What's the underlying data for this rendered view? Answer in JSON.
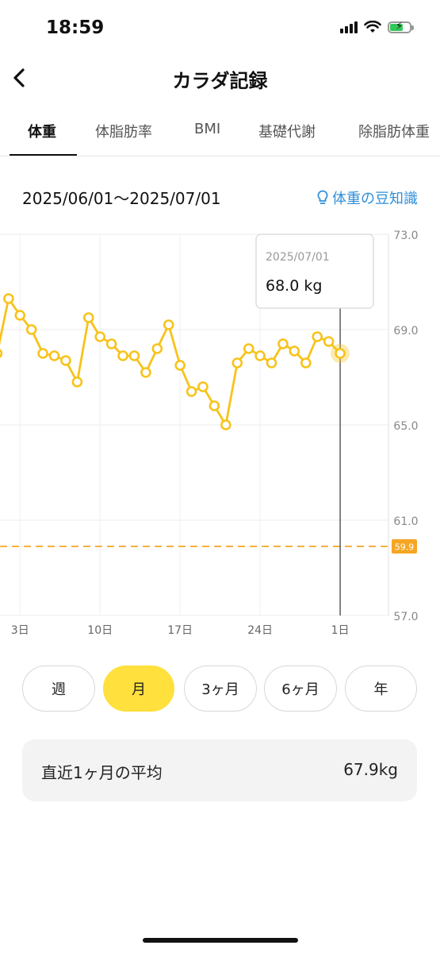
{
  "status_bar": {
    "time": "18:59"
  },
  "header": {
    "title": "カラダ記録"
  },
  "tabs": [
    {
      "label": "体重",
      "active": true
    },
    {
      "label": "体脂肪率"
    },
    {
      "label": "BMI"
    },
    {
      "label": "基礎代謝"
    },
    {
      "label": "除脂肪体重"
    }
  ],
  "range_text": "2025/06/01〜2025/07/01",
  "tips_link": "体重の豆知識",
  "chart_data": {
    "type": "line",
    "x": [
      "2025-06-01",
      "2025-06-02",
      "2025-06-03",
      "2025-06-04",
      "2025-06-05",
      "2025-06-06",
      "2025-06-07",
      "2025-06-08",
      "2025-06-09",
      "2025-06-10",
      "2025-06-11",
      "2025-06-12",
      "2025-06-13",
      "2025-06-14",
      "2025-06-15",
      "2025-06-16",
      "2025-06-17",
      "2025-06-18",
      "2025-06-19",
      "2025-06-20",
      "2025-06-21",
      "2025-06-22",
      "2025-06-23",
      "2025-06-24",
      "2025-06-25",
      "2025-06-26",
      "2025-06-27",
      "2025-06-28",
      "2025-06-29",
      "2025-06-30",
      "2025-07-01"
    ],
    "series": [
      {
        "values": [
          68.0,
          70.3,
          69.6,
          69.0,
          68.0,
          67.9,
          67.7,
          66.8,
          69.5,
          68.7,
          68.4,
          67.9,
          67.9,
          67.2,
          68.2,
          69.2,
          67.5,
          66.4,
          66.6,
          65.8,
          65.0,
          67.6,
          68.2,
          67.9,
          67.6,
          68.4,
          68.1,
          67.6,
          68.7,
          68.5,
          68.0
        ]
      }
    ],
    "x_ticks": [
      {
        "x": "2025-06-03",
        "label": "3日"
      },
      {
        "x": "2025-06-10",
        "label": "10日"
      },
      {
        "x": "2025-06-17",
        "label": "17日"
      },
      {
        "x": "2025-06-24",
        "label": "24日"
      },
      {
        "x": "2025-07-01",
        "label": "1日"
      }
    ],
    "x_range": [
      "2025-05-31",
      "2025-07-08"
    ],
    "y_ticks": [
      "73.0",
      "69.0",
      "65.0",
      "61.0",
      "57.0"
    ],
    "ylim": [
      57,
      73
    ],
    "target_line": {
      "value": 59.9,
      "label": "59.9",
      "color": "#f5a623"
    },
    "line_color": "#f7c31b",
    "grid": true,
    "tooltip": {
      "date": "2025/07/01",
      "value": "68.0 kg"
    }
  },
  "periods": [
    {
      "label": "週"
    },
    {
      "label": "月",
      "active": true
    },
    {
      "label": "3ヶ月"
    },
    {
      "label": "6ヶ月"
    },
    {
      "label": "年"
    }
  ],
  "average": {
    "label": "直近1ヶ月の平均",
    "value": "67.9kg"
  }
}
